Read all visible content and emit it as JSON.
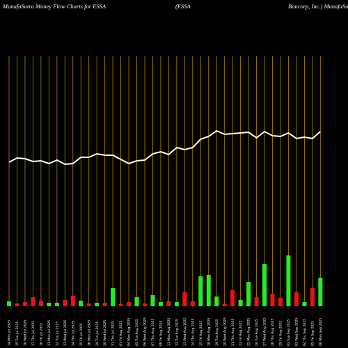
{
  "chart_data": {
    "type": "money-flow",
    "titles": [
      "MunafaSutra  Money Flow  Charts for ESSA",
      "(ESSA",
      "Bancorp, Inc.) MunafaSutra.com"
    ],
    "categories": [
      "14 Mon Jul 2025",
      "15 Tue Jul 2025",
      "16 Wed Jul 2025",
      "17 Thu Jul 2025",
      "18 Fri Jul 2025",
      "21 Mon Jul 2025",
      "22 Tue Jul 2025",
      "23 Wed Jul 2025",
      "24 Thu Jul 2025",
      "25 Fri Jul 2025",
      "28 Mon Jul 2025",
      "29 Tue Jul 2025",
      "30 Wed Jul 2025",
      "31 Thu Jul 2025",
      "01 Fri Aug 2025",
      "04 Mon Aug 2025",
      "05 Tue Aug 2025",
      "06 Wed Aug 2025",
      "07 Thu Aug 2025",
      "08 Fri Aug 2025",
      "11 Mon Aug 2025",
      "12 Tue Aug 2025",
      "13 Wed Aug 2025",
      "14 Thu Aug 2025",
      "15 Fri Aug 2025",
      "18 Mon Aug 2025",
      "19 Tue Aug 2025",
      "20 Wed Aug 2025",
      "21 Thu Aug 2025",
      "22 Fri Aug 2025",
      "25 Mon Aug 2025",
      "26 Tue Aug 2025",
      "27 Wed Aug 2025",
      "28 Thu Aug 2025",
      "29 Fri Aug 2025",
      "02 Tue Sep 2025",
      "03 Wed Sep 2025",
      "04 Thu Sep 2025",
      "05 Fri Sep 2025",
      "08 Mon Sep 2025"
    ],
    "series": [
      {
        "name": "Price",
        "color": "#ffffff",
        "values": [
          207,
          213,
          212,
          208,
          209,
          205,
          210,
          204,
          205,
          214,
          214,
          219,
          217,
          217,
          211,
          205,
          209,
          210,
          219,
          222,
          218,
          228,
          225,
          228,
          240,
          244,
          252,
          247,
          248,
          249,
          250,
          242,
          251,
          245,
          244,
          249,
          241,
          243,
          241,
          251
        ]
      },
      {
        "name": "Money Flow",
        "values": [
          7,
          4,
          6,
          13,
          8,
          5,
          5,
          9,
          15,
          8,
          4,
          5,
          5,
          26,
          3,
          6,
          13,
          4,
          16,
          6,
          7,
          6,
          20,
          7,
          43,
          45,
          14,
          3,
          23,
          9,
          35,
          13,
          61,
          18,
          12,
          73,
          20,
          6,
          26,
          41
        ],
        "colors": [
          "#22ee22",
          "#ee1111",
          "#ee1111",
          "#ee1111",
          "#ee1111",
          "#22ee22",
          "#22ee22",
          "#ee1111",
          "#ee1111",
          "#22ee22",
          "#ee1111",
          "#22ee22",
          "#ee1111",
          "#22ee22",
          "#ee1111",
          "#ee1111",
          "#22ee22",
          "#ee1111",
          "#22ee22",
          "#22ee22",
          "#ee1111",
          "#22ee22",
          "#ee1111",
          "#ee1111",
          "#22ee22",
          "#22ee22",
          "#22ee22",
          "#ee1111",
          "#ee1111",
          "#22ee22",
          "#22ee22",
          "#ee1111",
          "#22ee22",
          "#ee1111",
          "#ee1111",
          "#22ee22",
          "#ee1111",
          "#22ee22",
          "#ee1111",
          "#22ee22"
        ]
      }
    ],
    "ylim": [
      0,
      360
    ],
    "grid": true,
    "grid_color": "#b8860b"
  }
}
